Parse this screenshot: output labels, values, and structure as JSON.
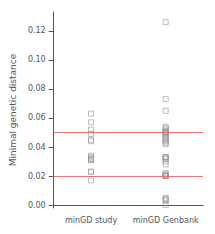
{
  "chart_data": {
    "type": "scatter",
    "ylabel": "Minimal genetic distance",
    "categories": [
      "minGD study",
      "minGD Genbank"
    ],
    "values": [
      [
        0.057,
        0.052,
        0.063,
        0.044,
        0.049,
        0.031,
        0.031,
        0.032,
        0.032,
        0.033,
        0.034,
        0.045,
        0.023,
        0.017,
        0.023
      ],
      [
        0.126,
        0.073,
        0.054,
        0.065,
        0.053,
        0.05,
        0.052,
        0.05,
        0.05,
        0.051,
        0.046,
        0.049,
        0.047,
        0.048,
        0.044,
        0.045,
        0.042,
        0.043,
        0.032,
        0.033,
        0.033,
        0.033,
        0.03,
        0.028,
        0.032,
        0.021,
        0.02,
        0.02,
        0.02,
        0.02,
        0.02,
        0.021,
        0.022,
        0.004,
        0.003,
        0.004,
        0.005,
        0.0
      ]
    ],
    "color": "#999999",
    "marker": "square",
    "reference_lines": [
      {
        "value": 0.047,
        "color": "#e87575"
      },
      {
        "value": 0.02,
        "color": "#e87575"
      }
    ],
    "ylim": [
      -0.002,
      0.133
    ],
    "yticks": [
      {
        "value": 0,
        "label": "0.00"
      },
      0.02,
      0.04,
      0.06,
      0.08,
      {
        "value": 0.1,
        "label": "0.10"
      },
      0.12
    ],
    "grid": false
  }
}
